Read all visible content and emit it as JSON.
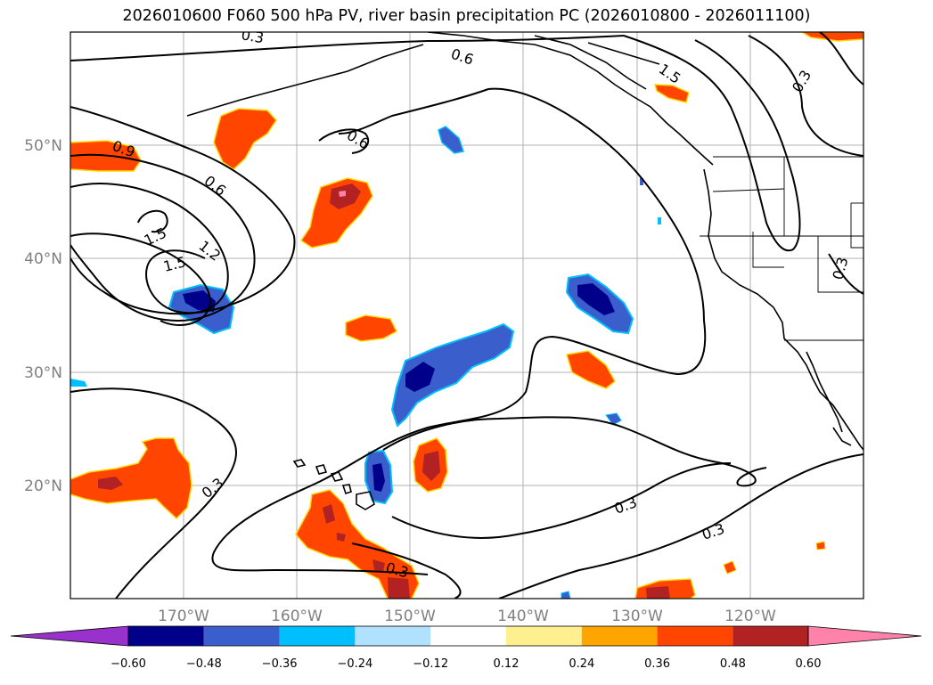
{
  "title": "2026010600 F060 500 hPa PV, river basin precipitation PC (2026010800 - 2026011100)",
  "map": {
    "lon_ticks": [
      {
        "value": -170,
        "label": "170°W"
      },
      {
        "value": -160,
        "label": "160°W"
      },
      {
        "value": -150,
        "label": "150°W"
      },
      {
        "value": -140,
        "label": "140°W"
      },
      {
        "value": -130,
        "label": "130°W"
      },
      {
        "value": -120,
        "label": "120°W"
      }
    ],
    "lat_ticks": [
      {
        "value": 20,
        "label": "20°N"
      },
      {
        "value": 30,
        "label": "30°N"
      },
      {
        "value": 40,
        "label": "40°N"
      },
      {
        "value": 50,
        "label": "50°N"
      }
    ],
    "extent": {
      "lon_min": -180,
      "lon_max": -110,
      "lat_min": 10,
      "lat_max": 60
    },
    "contour_labels": [
      "0.6",
      "0.9",
      "0.6",
      "1.5",
      "1.2",
      "1.5",
      "0.6",
      "1.5",
      "0.3",
      "0.3",
      "0.3",
      "0.3",
      "0.3",
      "0.3",
      "0.3"
    ]
  },
  "colorbar": {
    "ticks": [
      "−0.60",
      "−0.48",
      "−0.36",
      "−0.24",
      "−0.12",
      "0.12",
      "0.24",
      "0.36",
      "0.48",
      "0.60"
    ],
    "colors": [
      "#9932cc",
      "#00008b",
      "#3a5fcd",
      "#00bfff",
      "#b0e2ff",
      "#ffffff",
      "#fff08f",
      "#ffa500",
      "#ff4500",
      "#b22222",
      "#ff82ab"
    ],
    "extend": "both"
  }
}
